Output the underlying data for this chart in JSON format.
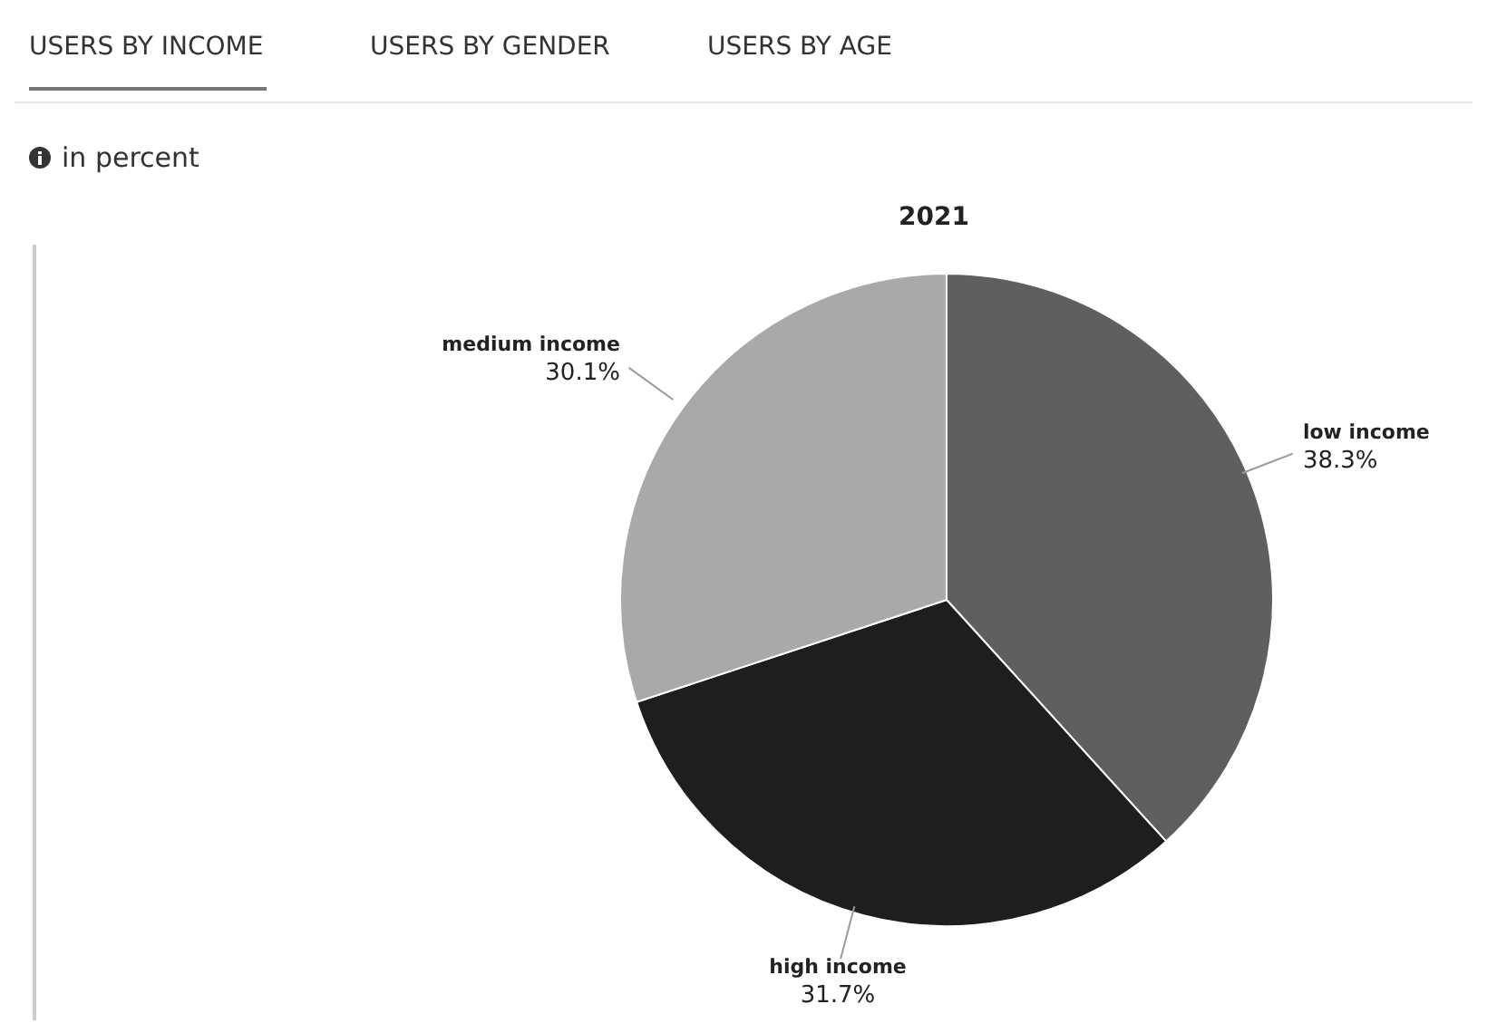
{
  "chart_data": {
    "type": "pie",
    "title": "2021",
    "subtitle": "in percent",
    "annotations": [
      "USERS BY INCOME",
      "USERS BY GENDER",
      "USERS BY AGE"
    ],
    "categories": [
      "low income",
      "high income",
      "medium income"
    ],
    "values": [
      38.3,
      31.7,
      30.1
    ],
    "colors": [
      "#5f5f5f",
      "#1e1e1e",
      "#a9a9a9"
    ],
    "value_labels": [
      "38.3%",
      "31.7%",
      "30.1%"
    ],
    "legend": false
  }
}
